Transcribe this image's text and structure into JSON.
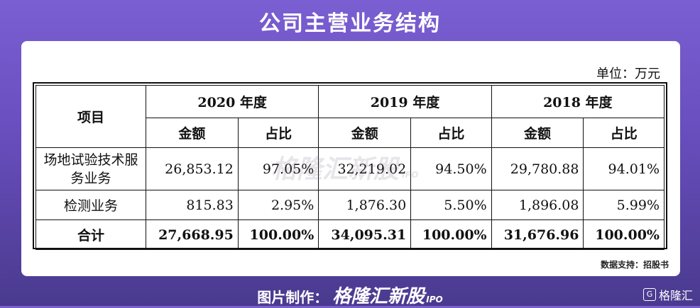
{
  "title": "公司主营业务结构",
  "unit": "单位：万元",
  "table": {
    "col_item": "项目",
    "years": [
      "2020 年度",
      "2019 年度",
      "2018 年度"
    ],
    "sub_amount": "金额",
    "sub_ratio": "占比",
    "rows": [
      {
        "label": "场地试验技术服务业务",
        "v": [
          "26,853.12",
          "97.05%",
          "32,219.02",
          "94.50%",
          "29,780.88",
          "94.01%"
        ]
      },
      {
        "label": "检测业务",
        "v": [
          "815.83",
          "2.95%",
          "1,876.30",
          "5.50%",
          "1,896.08",
          "5.99%"
        ]
      },
      {
        "label": "合计",
        "v": [
          "27,668.95",
          "100.00%",
          "34,095.31",
          "100.00%",
          "31,676.96",
          "100.00%"
        ]
      }
    ]
  },
  "watermark": {
    "text": "格隆汇新股",
    "tag": "IPO"
  },
  "source": "数据支持：招股书",
  "footer": {
    "prefix": "图片制作：",
    "brand": "格隆汇新股",
    "tag": "IPO"
  },
  "corner_logo": {
    "icon": "G",
    "text": "格隆汇"
  }
}
